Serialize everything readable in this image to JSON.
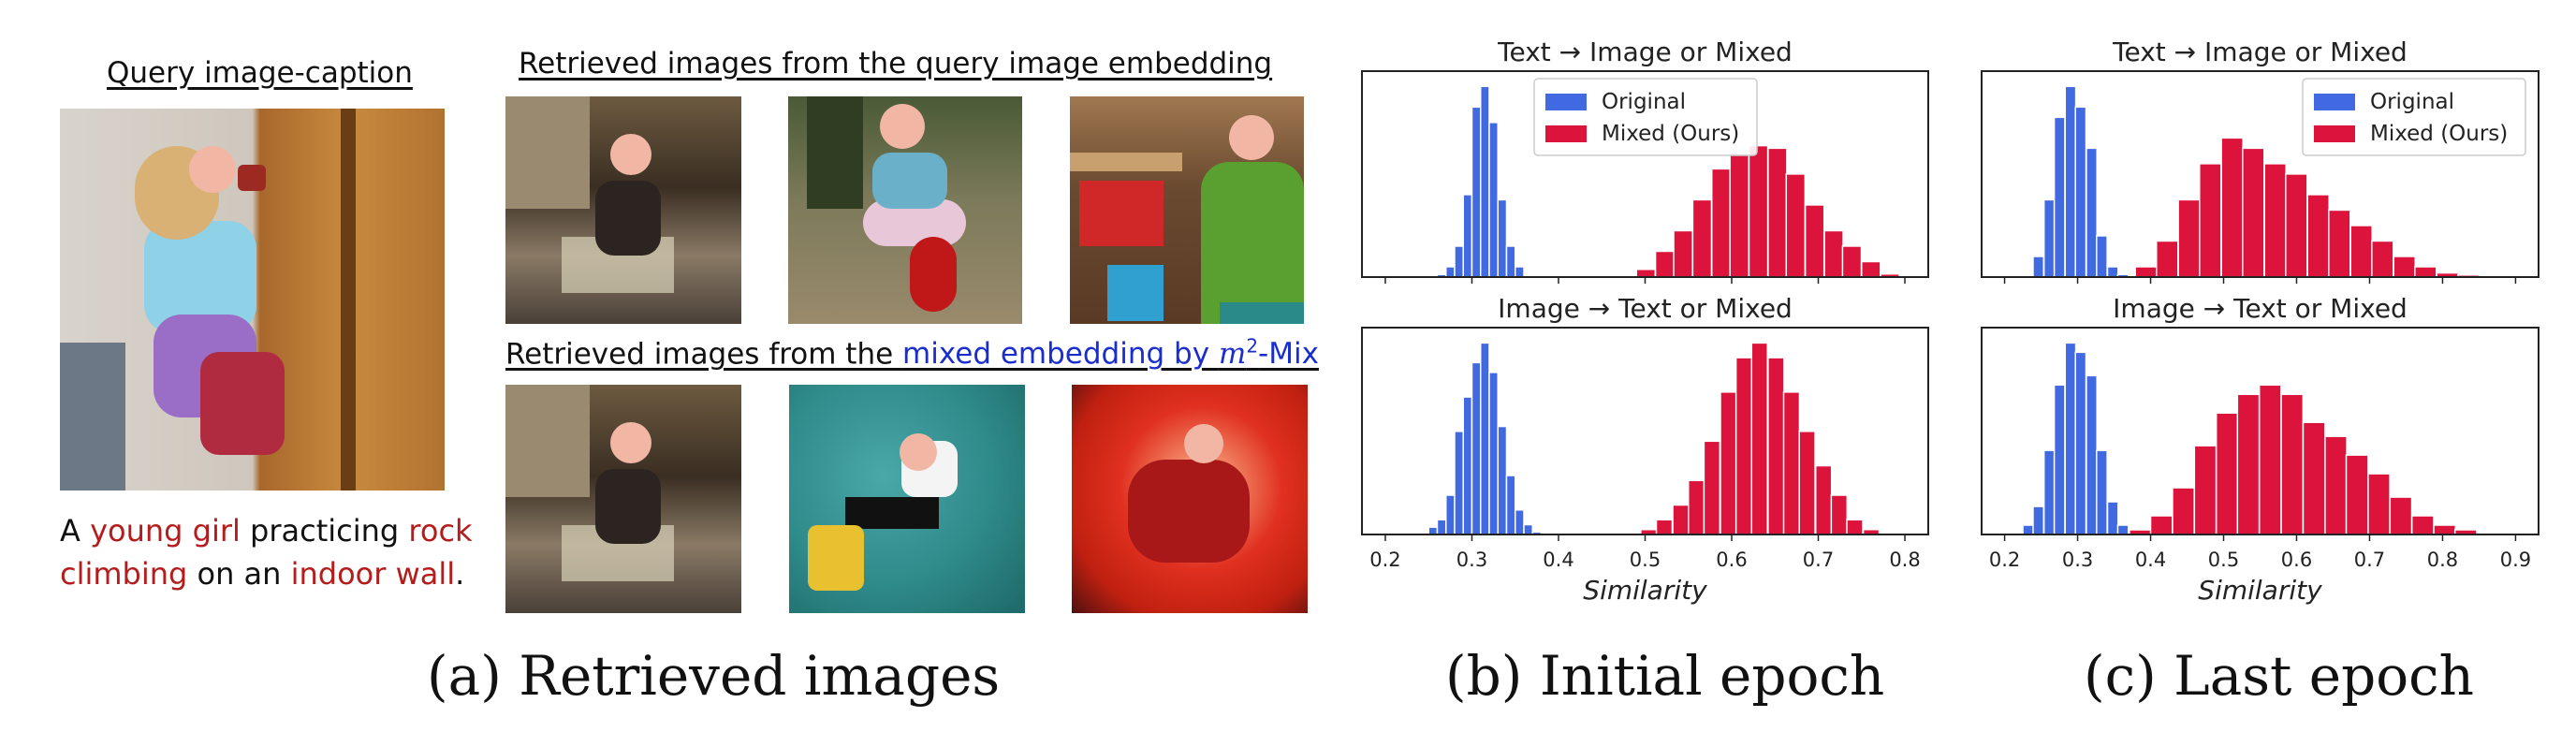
{
  "panel_a": {
    "query_title": "Query image-caption",
    "retrieved_title_1": "Retrieved images from the query image embedding",
    "retrieved_title_2_prefix": "Retrieved images from the ",
    "retrieved_title_2_link_a": "mixed embedding by ",
    "retrieved_title_2_link_m": "m",
    "retrieved_title_2_link_sup": "2",
    "retrieved_title_2_link_b": "-Mix",
    "caption": {
      "p1": "A ",
      "p2": "young girl",
      "p3": " practicing ",
      "p4": "rock",
      "p5": "climbing",
      "p6": " on an ",
      "p7": "indoor wall",
      "p8": "."
    },
    "colors": {
      "highlight_red": "#b51c1c",
      "link_blue": "#1a2ecf"
    }
  },
  "sublabels": {
    "a": "(a)  Retrieved images",
    "b": "(b)  Initial epoch",
    "c": "(c)  Last epoch"
  },
  "chart_data": [
    {
      "type": "histogram",
      "title": "Text → Image or Mixed",
      "panel": "b",
      "xlim": [
        0.2,
        0.8
      ],
      "xticks": [
        "0.2",
        "0.3",
        "0.4",
        "0.5",
        "0.6",
        "0.7",
        "0.8"
      ],
      "legend_position": "top-left",
      "series": [
        {
          "name": "Original",
          "color": "#4169e1",
          "bin_width": 0.01,
          "bins": [
            [
              0.26,
              0.5
            ],
            [
              0.27,
              2
            ],
            [
              0.28,
              6
            ],
            [
              0.29,
              16
            ],
            [
              0.3,
              33
            ],
            [
              0.31,
              37
            ],
            [
              0.32,
              30
            ],
            [
              0.33,
              15
            ],
            [
              0.34,
              6
            ],
            [
              0.35,
              2
            ]
          ]
        },
        {
          "name": "Mixed (Ours)",
          "color": "#dc143c",
          "bin_width": 0.0217,
          "bins": [
            [
              0.468,
              0.3
            ],
            [
              0.49,
              1.5
            ],
            [
              0.512,
              5
            ],
            [
              0.533,
              9
            ],
            [
              0.555,
              15
            ],
            [
              0.577,
              21
            ],
            [
              0.598,
              24
            ],
            [
              0.62,
              25.5
            ],
            [
              0.642,
              25
            ],
            [
              0.663,
              20
            ],
            [
              0.685,
              14
            ],
            [
              0.707,
              9
            ],
            [
              0.728,
              6
            ],
            [
              0.75,
              3
            ],
            [
              0.772,
              0.6
            ]
          ]
        }
      ]
    },
    {
      "type": "histogram",
      "title": "Text → Image or Mixed",
      "panel": "c",
      "xlim": [
        0.2,
        0.9
      ],
      "xticks": [
        "0.2",
        "0.3",
        "0.4",
        "0.5",
        "0.6",
        "0.7",
        "0.8",
        "0.9"
      ],
      "legend_position": "top-right",
      "series": [
        {
          "name": "Original",
          "color": "#4169e1",
          "bin_width": 0.0145,
          "bins": [
            [
              0.239,
              4
            ],
            [
              0.254,
              15
            ],
            [
              0.268,
              31
            ],
            [
              0.283,
              37
            ],
            [
              0.297,
              33
            ],
            [
              0.312,
              25
            ],
            [
              0.326,
              8
            ],
            [
              0.341,
              2
            ],
            [
              0.355,
              0.5
            ]
          ]
        },
        {
          "name": "Mixed (Ours)",
          "color": "#dc143c",
          "bin_width": 0.0295,
          "bins": [
            [
              0.379,
              2
            ],
            [
              0.408,
              7
            ],
            [
              0.438,
              15
            ],
            [
              0.467,
              22
            ],
            [
              0.497,
              27
            ],
            [
              0.526,
              25
            ],
            [
              0.556,
              22
            ],
            [
              0.585,
              20
            ],
            [
              0.615,
              16
            ],
            [
              0.644,
              13
            ],
            [
              0.674,
              10
            ],
            [
              0.703,
              7
            ],
            [
              0.733,
              4
            ],
            [
              0.762,
              2
            ],
            [
              0.792,
              0.8
            ],
            [
              0.821,
              0.4
            ]
          ]
        }
      ]
    },
    {
      "type": "histogram",
      "title": "Image → Text or Mixed",
      "panel": "b",
      "xlim": [
        0.2,
        0.8
      ],
      "xticks": [
        "0.2",
        "0.3",
        "0.4",
        "0.5",
        "0.6",
        "0.7",
        "0.8"
      ],
      "xlabel": "Similarity",
      "series": [
        {
          "name": "Original",
          "color": "#4169e1",
          "bin_width": 0.01,
          "bins": [
            [
              0.25,
              1.5
            ],
            [
              0.26,
              3
            ],
            [
              0.27,
              8
            ],
            [
              0.28,
              21
            ],
            [
              0.29,
              28
            ],
            [
              0.3,
              35
            ],
            [
              0.31,
              39
            ],
            [
              0.32,
              33
            ],
            [
              0.33,
              22
            ],
            [
              0.34,
              12
            ],
            [
              0.35,
              5
            ],
            [
              0.36,
              2
            ],
            [
              0.37,
              0.5
            ]
          ]
        },
        {
          "name": "Mixed (Ours)",
          "color": "#dc143c",
          "bin_width": 0.0183,
          "bins": [
            [
              0.495,
              1
            ],
            [
              0.513,
              3
            ],
            [
              0.532,
              6
            ],
            [
              0.55,
              11
            ],
            [
              0.568,
              19
            ],
            [
              0.587,
              29
            ],
            [
              0.605,
              36
            ],
            [
              0.623,
              39
            ],
            [
              0.642,
              36
            ],
            [
              0.66,
              29
            ],
            [
              0.678,
              21
            ],
            [
              0.697,
              14
            ],
            [
              0.715,
              8
            ],
            [
              0.733,
              3
            ],
            [
              0.752,
              1
            ]
          ]
        }
      ]
    },
    {
      "type": "histogram",
      "title": "Image → Text or Mixed",
      "panel": "c",
      "xlim": [
        0.2,
        0.9
      ],
      "xticks": [
        "0.2",
        "0.3",
        "0.4",
        "0.5",
        "0.6",
        "0.7",
        "0.8",
        "0.9"
      ],
      "xlabel": "Similarity",
      "series": [
        {
          "name": "Original",
          "color": "#4169e1",
          "bin_width": 0.0145,
          "bins": [
            [
              0.225,
              2
            ],
            [
              0.239,
              6
            ],
            [
              0.254,
              18
            ],
            [
              0.268,
              32
            ],
            [
              0.283,
              41
            ],
            [
              0.297,
              39
            ],
            [
              0.312,
              34
            ],
            [
              0.326,
              18
            ],
            [
              0.341,
              7
            ],
            [
              0.355,
              2
            ]
          ]
        },
        {
          "name": "Mixed (Ours)",
          "color": "#dc143c",
          "bin_width": 0.0298,
          "bins": [
            [
              0.371,
              1
            ],
            [
              0.4,
              4
            ],
            [
              0.43,
              10
            ],
            [
              0.46,
              19
            ],
            [
              0.49,
              26
            ],
            [
              0.519,
              30
            ],
            [
              0.549,
              32
            ],
            [
              0.579,
              30
            ],
            [
              0.609,
              24
            ],
            [
              0.639,
              21
            ],
            [
              0.668,
              17
            ],
            [
              0.698,
              13
            ],
            [
              0.728,
              8
            ],
            [
              0.758,
              4
            ],
            [
              0.788,
              2
            ],
            [
              0.817,
              1
            ]
          ]
        }
      ]
    }
  ]
}
